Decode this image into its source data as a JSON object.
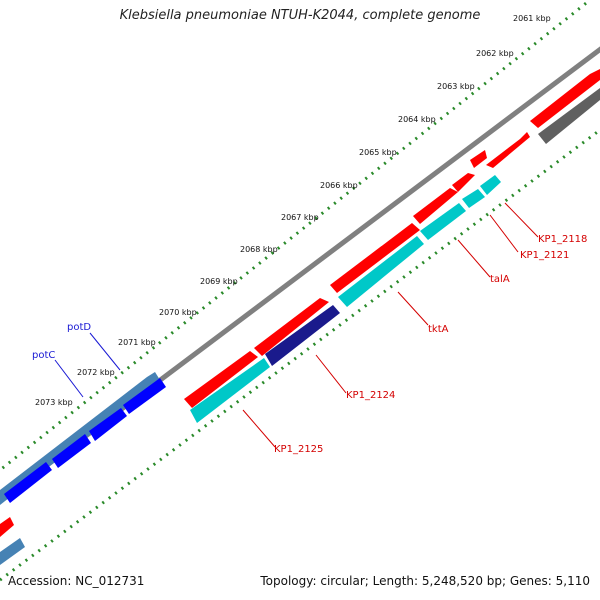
{
  "title": "Klebsiella pneumoniae NTUH-K2044, complete genome",
  "footer": {
    "accession": "Accession: NC_012731",
    "summary": "Topology: circular; Length: 5,248,520 bp; Genes: 5,110"
  },
  "scale_labels": [
    "2061 kbp",
    "2062 kbp",
    "2063 kbp",
    "2064 kbp",
    "2065 kbp",
    "2066 kbp",
    "2067 kbp",
    "2068 kbp",
    "2069 kbp",
    "2070 kbp",
    "2071 kbp",
    "2072 kbp",
    "2073 kbp"
  ],
  "gene_labels": {
    "kp1_2118": "KP1_2118",
    "kp1_2121": "KP1_2121",
    "tala": "talA",
    "tkta": "tktA",
    "kp1_2124": "KP1_2124",
    "kp1_2125": "KP1_2125",
    "potd": "potD",
    "potc": "potC"
  },
  "colors": {
    "forward_gene": "#ff0000",
    "reverse_gene": "#00c8c8",
    "potD": "#4682b4",
    "potC": "#0000ff",
    "KP1_2124": "#1a1a8c",
    "backbone": "#808080",
    "tick": "#2a8a2a"
  }
}
